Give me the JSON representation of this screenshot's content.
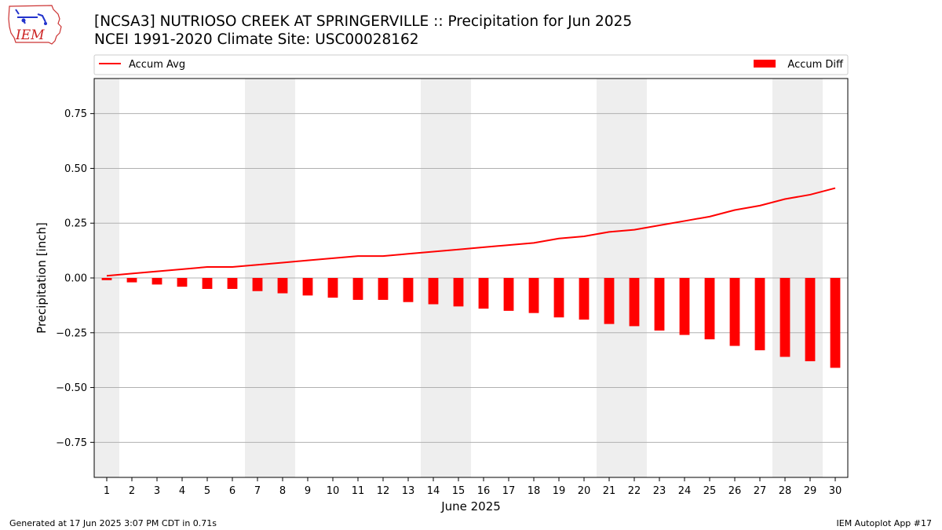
{
  "header": {
    "title_line1": "[NCSA3] NUTRIOSO CREEK AT SPRINGERVILLE :: Precipitation for Jun 2025",
    "title_line2": "NCEI 1991-2020 Climate Site: USC00028162"
  },
  "logo": {
    "text": "IEM",
    "icon": "iowa-state-logo-icon"
  },
  "footer": {
    "left": "Generated at 17 Jun 2025 3:07 PM CDT in 0.71s",
    "right": "IEM Autoplot App #17"
  },
  "colors": {
    "series": "#ff0000",
    "weekend_shade": "#eeeeee",
    "grid": "#b0b0b0"
  },
  "chart_data": {
    "type": "bar",
    "xlabel": "June 2025",
    "ylabel": "Precipitation [inch]",
    "ylim": [
      -0.91,
      0.91
    ],
    "yticks": [
      -0.75,
      -0.5,
      -0.25,
      0.0,
      0.25,
      0.5,
      0.75
    ],
    "ytick_labels": [
      "−0.75",
      "−0.50",
      "−0.25",
      "0.00",
      "0.25",
      "0.50",
      "0.75"
    ],
    "xlim": [
      0.5,
      30.5
    ],
    "x": [
      1,
      2,
      3,
      4,
      5,
      6,
      7,
      8,
      9,
      10,
      11,
      12,
      13,
      14,
      15,
      16,
      17,
      18,
      19,
      20,
      21,
      22,
      23,
      24,
      25,
      26,
      27,
      28,
      29,
      30
    ],
    "x_tick_labels": [
      "1",
      "2",
      "3",
      "4",
      "5",
      "6",
      "7",
      "8",
      "9",
      "10",
      "11",
      "12",
      "13",
      "14",
      "15",
      "16",
      "17",
      "18",
      "19",
      "20",
      "21",
      "22",
      "23",
      "24",
      "25",
      "26",
      "27",
      "28",
      "29",
      "30"
    ],
    "weekend_days": [
      1,
      7,
      8,
      14,
      15,
      21,
      22,
      28,
      29
    ],
    "grid": "y",
    "series": [
      {
        "name": "Accum Avg",
        "kind": "line",
        "values": [
          0.01,
          0.02,
          0.03,
          0.04,
          0.05,
          0.05,
          0.06,
          0.07,
          0.08,
          0.09,
          0.1,
          0.1,
          0.11,
          0.12,
          0.13,
          0.14,
          0.15,
          0.16,
          0.18,
          0.19,
          0.21,
          0.22,
          0.24,
          0.26,
          0.28,
          0.31,
          0.33,
          0.36,
          0.38,
          0.41
        ]
      },
      {
        "name": "Accum Diff",
        "kind": "bar",
        "values": [
          -0.01,
          -0.02,
          -0.03,
          -0.04,
          -0.05,
          -0.05,
          -0.06,
          -0.07,
          -0.08,
          -0.09,
          -0.1,
          -0.1,
          -0.11,
          -0.12,
          -0.13,
          -0.14,
          -0.15,
          -0.16,
          -0.18,
          -0.19,
          -0.21,
          -0.22,
          -0.24,
          -0.26,
          -0.28,
          -0.31,
          -0.33,
          -0.36,
          -0.38,
          -0.41
        ]
      }
    ],
    "legend": "top, above plot"
  }
}
